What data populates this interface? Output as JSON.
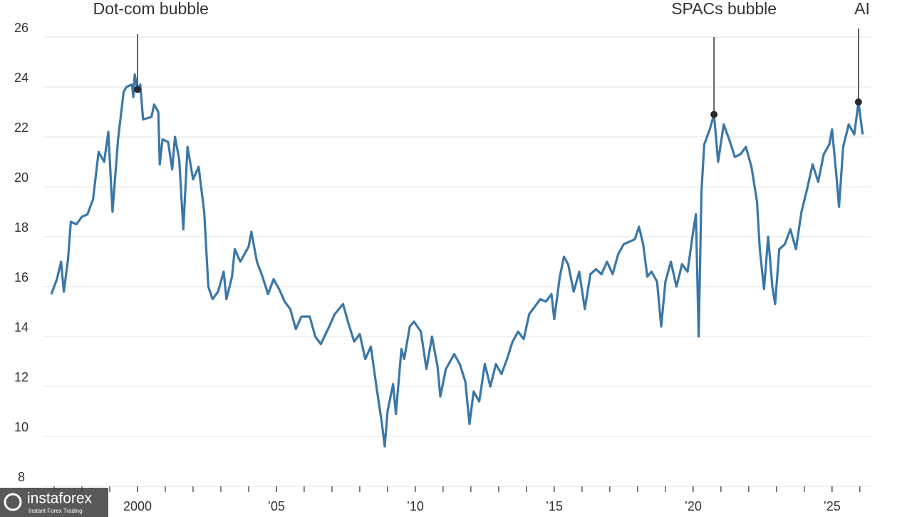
{
  "chart_data": {
    "type": "line",
    "x": [
      1996.9,
      1997.1,
      1997.25,
      1997.35,
      1997.5,
      1997.6,
      1997.8,
      1998.0,
      1998.2,
      1998.4,
      1998.6,
      1998.8,
      1998.95,
      1999.1,
      1999.3,
      1999.5,
      1999.6,
      1999.8,
      1999.85,
      1999.9,
      2000.0,
      2000.1,
      2000.2,
      2000.5,
      2000.6,
      2000.75,
      2000.8,
      2000.9,
      2001.1,
      2001.25,
      2001.35,
      2001.5,
      2001.65,
      2001.8,
      2002.0,
      2002.2,
      2002.4,
      2002.55,
      2002.7,
      2002.9,
      2003.1,
      2003.2,
      2003.4,
      2003.5,
      2003.7,
      2003.9,
      2004.0,
      2004.1,
      2004.3,
      2004.5,
      2004.7,
      2004.9,
      2005.1,
      2005.3,
      2005.5,
      2005.7,
      2005.9,
      2006.2,
      2006.4,
      2006.6,
      2006.9,
      2007.1,
      2007.4,
      2007.6,
      2007.8,
      2008.0,
      2008.2,
      2008.4,
      2008.6,
      2008.8,
      2008.9,
      2009.0,
      2009.2,
      2009.3,
      2009.5,
      2009.6,
      2009.8,
      2009.95,
      2010.2,
      2010.4,
      2010.6,
      2010.8,
      2010.9,
      2011.1,
      2011.4,
      2011.6,
      2011.8,
      2011.95,
      2012.1,
      2012.3,
      2012.5,
      2012.7,
      2012.9,
      2013.1,
      2013.3,
      2013.5,
      2013.7,
      2013.9,
      2014.1,
      2014.3,
      2014.5,
      2014.7,
      2014.9,
      2015.0,
      2015.2,
      2015.35,
      2015.5,
      2015.7,
      2015.9,
      2016.1,
      2016.3,
      2016.5,
      2016.7,
      2016.9,
      2017.1,
      2017.3,
      2017.5,
      2017.7,
      2017.9,
      2018.05,
      2018.2,
      2018.35,
      2018.5,
      2018.7,
      2018.85,
      2019.0,
      2019.2,
      2019.4,
      2019.6,
      2019.8,
      2020.0,
      2020.1,
      2020.2,
      2020.3,
      2020.4,
      2020.6,
      2020.75,
      2020.9,
      2021.1,
      2021.3,
      2021.5,
      2021.7,
      2021.9,
      2022.1,
      2022.3,
      2022.4,
      2022.55,
      2022.7,
      2022.85,
      2022.95,
      2023.1,
      2023.3,
      2023.5,
      2023.7,
      2023.9,
      2024.1,
      2024.3,
      2024.5,
      2024.7,
      2024.9,
      2025.0,
      2025.15,
      2025.25,
      2025.4,
      2025.6,
      2025.8,
      2025.95,
      2026.1
    ],
    "series": [
      {
        "color": "#3a77a8",
        "values": [
          15.7,
          16.3,
          17.0,
          15.8,
          17.1,
          18.6,
          18.5,
          18.8,
          18.9,
          19.5,
          21.4,
          21.0,
          22.2,
          19.0,
          21.9,
          23.8,
          24.0,
          24.1,
          23.6,
          24.5,
          23.9,
          24.1,
          22.7,
          22.8,
          23.3,
          23.0,
          20.9,
          21.9,
          21.8,
          20.7,
          22.0,
          21.1,
          18.3,
          21.6,
          20.3,
          20.8,
          19.0,
          16.0,
          15.5,
          15.8,
          16.6,
          15.5,
          16.4,
          17.5,
          17.0,
          17.4,
          17.6,
          18.2,
          17.0,
          16.4,
          15.7,
          16.3,
          15.9,
          15.4,
          15.1,
          14.3,
          14.8,
          14.8,
          14.0,
          13.7,
          14.4,
          14.9,
          15.3,
          14.5,
          13.8,
          14.1,
          13.1,
          13.6,
          12.0,
          10.5,
          9.6,
          11.0,
          12.1,
          10.9,
          13.5,
          13.1,
          14.4,
          14.6,
          14.2,
          12.7,
          14.0,
          12.8,
          11.6,
          12.7,
          13.3,
          12.9,
          12.2,
          10.5,
          11.8,
          11.4,
          12.9,
          12.0,
          12.9,
          12.5,
          13.1,
          13.8,
          14.2,
          13.9,
          14.9,
          15.2,
          15.5,
          15.4,
          15.7,
          14.7,
          16.4,
          17.2,
          16.9,
          15.8,
          16.6,
          15.1,
          16.5,
          16.7,
          16.5,
          17.0,
          16.5,
          17.3,
          17.7,
          17.8,
          17.9,
          18.4,
          17.7,
          16.4,
          16.6,
          16.2,
          14.4,
          16.2,
          17.0,
          16.0,
          16.9,
          16.6,
          18.2,
          18.9,
          14.0,
          19.8,
          21.7,
          22.3,
          22.9,
          21.0,
          22.5,
          21.9,
          21.2,
          21.3,
          21.6,
          20.8,
          19.4,
          17.5,
          15.9,
          18.0,
          16.0,
          15.3,
          17.5,
          17.7,
          18.3,
          17.5,
          19.0,
          19.9,
          20.9,
          20.2,
          21.3,
          21.7,
          22.3,
          20.5,
          19.2,
          21.6,
          22.5,
          22.1,
          23.4,
          22.1
        ]
      }
    ],
    "xlim": [
      1996,
      2026.8
    ],
    "xticks": [
      {
        "value": 2000,
        "label": "2000"
      },
      {
        "value": 2005,
        "label": "’05"
      },
      {
        "value": 2010,
        "label": "’10"
      },
      {
        "value": 2015,
        "label": "’15"
      },
      {
        "value": 2020,
        "label": "’20"
      },
      {
        "value": 2025,
        "label": "’25"
      }
    ],
    "xminorticks": [
      1997,
      1998,
      1999,
      2000,
      2001,
      2002,
      2003,
      2004,
      2005,
      2006,
      2007,
      2008,
      2009,
      2010,
      2011,
      2012,
      2013,
      2014,
      2015,
      2016,
      2017,
      2018,
      2019,
      2020,
      2021,
      2022,
      2023,
      2024,
      2025,
      2026
    ],
    "ylim": [
      8,
      26
    ],
    "yticks": [
      8,
      10,
      12,
      14,
      16,
      18,
      20,
      22,
      24,
      26
    ],
    "grid": true,
    "annotations": [
      {
        "text": "Dot-com bubble",
        "x": 2000.0,
        "y": 23.9
      },
      {
        "text": "SPACs bubble",
        "x": 2020.75,
        "y": 22.9
      },
      {
        "text": "AI",
        "x": 2025.95,
        "y": 23.4
      }
    ]
  },
  "watermark": {
    "name": "instaforex",
    "tagline": "Instant Forex Trading"
  }
}
